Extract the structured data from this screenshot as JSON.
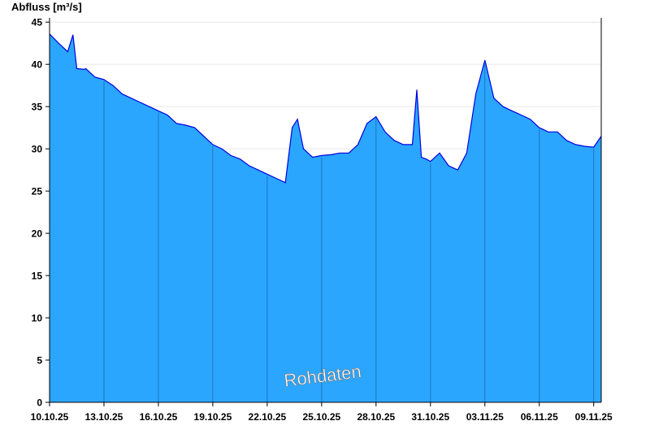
{
  "chart_data": {
    "type": "area",
    "title": "",
    "ylabel": "Abfluss [m³/s]",
    "xlabel": "",
    "ylim": [
      0,
      45.5
    ],
    "xlim": [
      "2025-10-10",
      "2025-11-09T10:00"
    ],
    "yticks": [
      0,
      5,
      10,
      15,
      20,
      25,
      30,
      35,
      40,
      45
    ],
    "xticks": [
      "10.10.25",
      "13.10.25",
      "16.10.25",
      "19.10.25",
      "22.10.25",
      "25.10.25",
      "28.10.25",
      "31.10.25",
      "03.11.25",
      "06.11.25",
      "09.11.25"
    ],
    "grid": "horizontal",
    "fill_color": "#2ba6ff",
    "line_color": "#0000e0",
    "watermark": "Rohdaten",
    "series": [
      {
        "x": [
          "2025-10-10",
          "2025-10-10T12:00",
          "2025-10-11",
          "2025-10-11T07:00",
          "2025-10-11T12:00",
          "2025-10-11T22:00",
          "2025-10-12",
          "2025-10-12T12:00",
          "2025-10-13",
          "2025-10-13T12:00",
          "2025-10-14",
          "2025-10-14T12:00",
          "2025-10-15",
          "2025-10-15T12:00",
          "2025-10-16",
          "2025-10-16T12:00",
          "2025-10-17",
          "2025-10-17T12:00",
          "2025-10-18",
          "2025-10-18T12:00",
          "2025-10-19",
          "2025-10-19T12:00",
          "2025-10-20",
          "2025-10-20T12:00",
          "2025-10-21",
          "2025-10-21T12:00",
          "2025-10-22",
          "2025-10-22T12:00",
          "2025-10-23",
          "2025-10-23T09:00",
          "2025-10-23T16:00",
          "2025-10-24",
          "2025-10-24T12:00",
          "2025-10-25",
          "2025-10-25T12:00",
          "2025-10-26",
          "2025-10-26T12:00",
          "2025-10-27",
          "2025-10-27T12:00",
          "2025-10-28",
          "2025-10-28T12:00",
          "2025-10-29",
          "2025-10-29T12:00",
          "2025-10-30",
          "2025-10-30T06:00",
          "2025-10-30T12:00",
          "2025-10-30T18:00",
          "2025-10-31",
          "2025-10-31T12:00",
          "2025-11-01",
          "2025-11-01T12:00",
          "2025-11-02",
          "2025-11-02T12:00",
          "2025-11-03",
          "2025-11-03T12:00",
          "2025-11-04",
          "2025-11-04T12:00",
          "2025-11-05",
          "2025-11-05T12:00",
          "2025-11-06",
          "2025-11-06T12:00",
          "2025-11-07",
          "2025-11-07T12:00",
          "2025-11-08",
          "2025-11-08T12:00",
          "2025-11-09",
          "2025-11-09T10:00"
        ],
        "y": [
          43.6,
          42.5,
          41.5,
          43.5,
          39.5,
          39.4,
          39.5,
          38.5,
          38.2,
          37.5,
          36.5,
          36.0,
          35.5,
          35.0,
          34.5,
          34.0,
          33.0,
          32.8,
          32.5,
          31.5,
          30.5,
          30.0,
          29.2,
          28.8,
          28.0,
          27.5,
          27.0,
          26.5,
          26.0,
          32.5,
          33.5,
          30.0,
          29.0,
          29.2,
          29.3,
          29.5,
          29.5,
          30.5,
          33.0,
          33.8,
          32.0,
          31.0,
          30.5,
          30.5,
          37.0,
          29.0,
          28.8,
          28.5,
          29.5,
          28.0,
          27.5,
          29.5,
          36.5,
          40.5,
          36.0,
          35.0,
          34.5,
          34.0,
          33.5,
          32.5,
          32.0,
          32.0,
          31.0,
          30.5,
          30.3,
          30.2,
          31.5
        ]
      }
    ]
  }
}
